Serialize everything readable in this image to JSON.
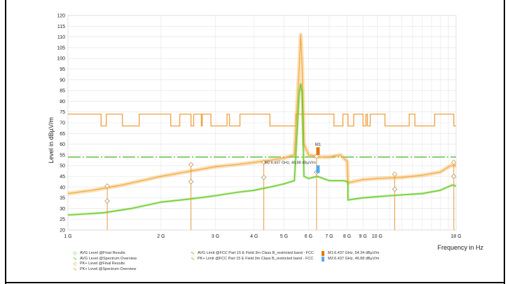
{
  "chart_data": {
    "type": "line",
    "xlabel": "Frequency in Hz",
    "ylabel": "Level in dBµV/m",
    "xscale": "log",
    "xlim": [
      1000000000.0,
      18000000000.0
    ],
    "ylim": [
      20,
      120
    ],
    "x_ticks": [
      {
        "label": "1 G",
        "value": 1000000000.0
      },
      {
        "label": "2 G",
        "value": 2000000000.0
      },
      {
        "label": "3 G",
        "value": 3000000000.0
      },
      {
        "label": "4 G",
        "value": 4000000000.0
      },
      {
        "label": "5 G",
        "value": 5000000000.0
      },
      {
        "label": "6 G",
        "value": 6000000000.0
      },
      {
        "label": "7 G",
        "value": 7000000000.0
      },
      {
        "label": "8 G",
        "value": 8000000000.0
      },
      {
        "label": "9 G",
        "value": 9000000000.0
      },
      {
        "label": "10 G",
        "value": 10000000000.0
      },
      {
        "label": "18 G",
        "value": 18000000000.0
      }
    ],
    "y_ticks": [
      20,
      25,
      30,
      35,
      40,
      45,
      50,
      55,
      60,
      65,
      70,
      75,
      80,
      85,
      90,
      95,
      100,
      105,
      110,
      115,
      120
    ],
    "grid": true,
    "series": [
      {
        "name": "PK+ Limit @FCC Part 15 E Field 3m Class B_restricted band - FCC",
        "color": "#f0a040",
        "style": "step",
        "points": [
          [
            1000000000.0,
            74
          ],
          [
            1280000000.0,
            74
          ],
          [
            1280000000.0,
            68.5
          ],
          [
            1330000000.0,
            68.5
          ],
          [
            1330000000.0,
            74
          ],
          [
            1500000000.0,
            74
          ],
          [
            1500000000.0,
            68.5
          ],
          [
            1700000000.0,
            68.5
          ],
          [
            1700000000.0,
            74
          ],
          [
            2150000000.0,
            74
          ],
          [
            2150000000.0,
            68.5
          ],
          [
            2300000000.0,
            68.5
          ],
          [
            2300000000.0,
            74
          ],
          [
            2500000000.0,
            74
          ],
          [
            2500000000.0,
            68.5
          ],
          [
            2550000000.0,
            68.5
          ],
          [
            2550000000.0,
            74
          ],
          [
            2700000000.0,
            74
          ],
          [
            2700000000.0,
            68.5
          ],
          [
            2720000000.0,
            68.5
          ],
          [
            2720000000.0,
            74
          ],
          [
            2900000000.0,
            74
          ],
          [
            2900000000.0,
            68.5
          ],
          [
            3270000000.0,
            68.5
          ],
          [
            3270000000.0,
            74
          ],
          [
            3330000000.0,
            74
          ],
          [
            3330000000.0,
            68.5
          ],
          [
            3600000000.0,
            68.5
          ],
          [
            3600000000.0,
            74
          ],
          [
            4500000000.0,
            74
          ],
          [
            4500000000.0,
            68.5
          ],
          [
            5460000000.0,
            68.5
          ],
          [
            5460000000.0,
            74
          ],
          [
            7250000000.0,
            74
          ],
          [
            7250000000.0,
            68.5
          ],
          [
            7750000000.0,
            68.5
          ],
          [
            7750000000.0,
            74
          ],
          [
            8050000000.0,
            74
          ],
          [
            8050000000.0,
            68.5
          ],
          [
            8400000000.0,
            68.5
          ],
          [
            8400000000.0,
            74
          ],
          [
            9000000000.0,
            74
          ],
          [
            9000000000.0,
            68.5
          ],
          [
            9200000000.0,
            68.5
          ],
          [
            9200000000.0,
            74
          ],
          [
            9300000000.0,
            74
          ],
          [
            9300000000.0,
            68.5
          ],
          [
            9500000000.0,
            68.5
          ],
          [
            9500000000.0,
            74
          ],
          [
            10600000000.0,
            74
          ],
          [
            10600000000.0,
            68.5
          ],
          [
            12700000000.0,
            68.5
          ],
          [
            12700000000.0,
            74
          ],
          [
            13250000000.0,
            74
          ],
          [
            13250000000.0,
            68.5
          ],
          [
            15350000000.0,
            68.5
          ],
          [
            15350000000.0,
            74
          ],
          [
            17700000000.0,
            74
          ],
          [
            17700000000.0,
            68.5
          ],
          [
            18000000000.0,
            68.5
          ]
        ]
      },
      {
        "name": "AVG Limit @FCC Part 15 E Field 3m Class B_restricted band - FCC",
        "color": "#55bb33",
        "style": "dashed",
        "points": [
          [
            1000000000.0,
            54
          ],
          [
            18000000000.0,
            54
          ]
        ]
      },
      {
        "name": "PK+ Level @Spectrum Overview",
        "color": "#f4a93c",
        "style": "band",
        "points": [
          [
            1000000000.0,
            37
          ],
          [
            1200000000.0,
            38.5
          ],
          [
            1500000000.0,
            41
          ],
          [
            2000000000.0,
            45
          ],
          [
            2500000000.0,
            47.5
          ],
          [
            3000000000.0,
            49.5
          ],
          [
            3500000000.0,
            50.5
          ],
          [
            4000000000.0,
            51.5
          ],
          [
            4500000000.0,
            52.5
          ],
          [
            5000000000.0,
            53.5
          ],
          [
            5400000000.0,
            55
          ],
          [
            5600000000.0,
            96
          ],
          [
            5660000000.0,
            111
          ],
          [
            5720000000.0,
            97
          ],
          [
            5800000000.0,
            60
          ],
          [
            6000000000.0,
            55
          ],
          [
            6500000000.0,
            54
          ],
          [
            7000000000.0,
            54
          ],
          [
            7600000000.0,
            55
          ],
          [
            8000000000.0,
            52
          ],
          [
            8050000000.0,
            42
          ],
          [
            9000000000.0,
            43.5
          ],
          [
            10000000000.0,
            44
          ],
          [
            12000000000.0,
            44.5
          ],
          [
            14000000000.0,
            45.5
          ],
          [
            16000000000.0,
            47
          ],
          [
            17300000000.0,
            50
          ],
          [
            18000000000.0,
            50
          ]
        ]
      },
      {
        "name": "AVG Level @Spectrum Overview",
        "color": "#66cc22",
        "style": "band",
        "points": [
          [
            1000000000.0,
            27
          ],
          [
            1300000000.0,
            28
          ],
          [
            1600000000.0,
            30
          ],
          [
            2000000000.0,
            33
          ],
          [
            2500000000.0,
            34.5
          ],
          [
            3000000000.0,
            36
          ],
          [
            3500000000.0,
            37.5
          ],
          [
            4000000000.0,
            38.5
          ],
          [
            4500000000.0,
            40
          ],
          [
            5000000000.0,
            41.5
          ],
          [
            5400000000.0,
            43
          ],
          [
            5600000000.0,
            84
          ],
          [
            5660000000.0,
            88
          ],
          [
            5720000000.0,
            84
          ],
          [
            5800000000.0,
            45
          ],
          [
            6000000000.0,
            44
          ],
          [
            6400000000.0,
            45
          ],
          [
            7000000000.0,
            43
          ],
          [
            7800000000.0,
            43
          ],
          [
            8050000000.0,
            42.5
          ],
          [
            8050000000.0,
            34
          ],
          [
            9000000000.0,
            35
          ],
          [
            11000000000.0,
            36
          ],
          [
            14000000000.0,
            37
          ],
          [
            16000000000.0,
            38.5
          ],
          [
            17500000000.0,
            41
          ],
          [
            18000000000.0,
            40.5
          ]
        ]
      }
    ],
    "final_results": {
      "pk": [
        [
          1340000000.0,
          40.5
        ],
        [
          2500000000.0,
          50.5
        ],
        [
          4300000000.0,
          51.5
        ],
        [
          6370000000.0,
          54.3
        ],
        [
          11400000000.0,
          46
        ],
        [
          17700000000.0,
          51.5
        ]
      ],
      "avg": [
        [
          1340000000.0,
          33.5
        ],
        [
          2500000000.0,
          42.5
        ],
        [
          4300000000.0,
          44.5
        ],
        [
          6370000000.0,
          46.9
        ],
        [
          11400000000.0,
          39
        ],
        [
          17700000000.0,
          45
        ]
      ]
    },
    "markers": [
      {
        "name": "M1",
        "x": 6437000000.0,
        "y": 54.34,
        "color": "#e07a10",
        "label": "M1"
      },
      {
        "name": "M2",
        "x": 6437000000.0,
        "y": 46.88,
        "color": "#55aaee",
        "label": "M2:6.437 GHz, 46.88 dBµV/m"
      }
    ],
    "legend": [
      {
        "sym": "◇",
        "color": "#55bb33",
        "text": "AVG Level @Final Results"
      },
      {
        "sym": "∿",
        "color": "#66cc22",
        "text": "AVG Level @Spectrum Overview"
      },
      {
        "sym": "◇",
        "color": "#e08830",
        "text": "PK+ Level @Final Results"
      },
      {
        "sym": "∿",
        "color": "#f4a93c",
        "text": "PK+ Level @Spectrum Overview"
      },
      {
        "sym": "∿",
        "color": "#55bb33",
        "text": "AVG Limit @FCC Part 15 E Field 3m Class B_restricted band - FCC"
      },
      {
        "sym": "∿",
        "color": "#e08830",
        "text": "PK+ Limit @FCC Part 15 E Field 3m Class B_restricted band - FCC"
      },
      {
        "color": "#e07a10",
        "text": "M1:6.437 GHz, 54.34 dBµV/m"
      },
      {
        "color": "#55aaee",
        "text": "M2:6.437 GHz, 46.88 dBµV/m"
      }
    ]
  }
}
